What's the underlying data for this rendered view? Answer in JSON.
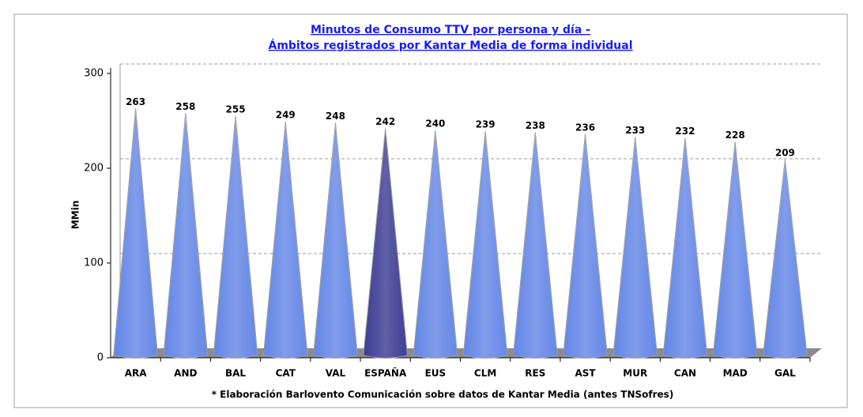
{
  "chart_data": {
    "type": "cone",
    "title": [
      "Minutos de Consumo TTV por persona y día -",
      "Ámbitos registrados por Kantar Media de forma individual"
    ],
    "y_label": "MMin",
    "footnote": "* Elaboración Barlovento Comunicación sobre datos de Kantar Media (antes TNSofres)",
    "categories": [
      "ARA",
      "AND",
      "BAL",
      "CAT",
      "VAL",
      "ESPAÑA",
      "EUS",
      "CLM",
      "RES",
      "AST",
      "MUR",
      "CAN",
      "MAD",
      "GAL"
    ],
    "values": [
      263,
      258,
      255,
      249,
      248,
      242,
      240,
      239,
      238,
      236,
      233,
      232,
      228,
      209
    ],
    "colors": [
      "#3d68e0",
      "#3d68e0",
      "#3d68e0",
      "#3d68e0",
      "#3d68e0",
      "#0c0c7a",
      "#3d68e0",
      "#3d68e0",
      "#3d68e0",
      "#3d68e0",
      "#3d68e0",
      "#3d68e0",
      "#3d68e0",
      "#3d68e0"
    ],
    "ylim": [
      0,
      300
    ],
    "yticks": [
      0,
      100,
      200,
      300
    ],
    "grid": true
  }
}
